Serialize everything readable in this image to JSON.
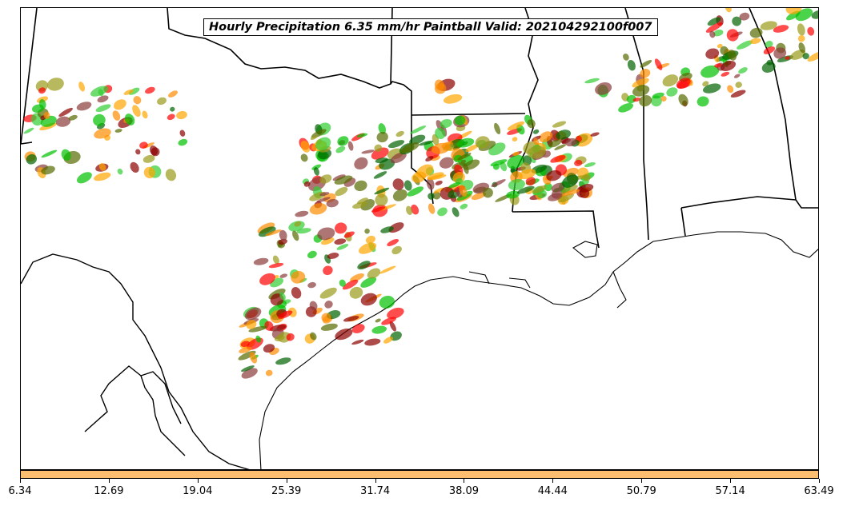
{
  "map": {
    "title": "Hourly Precipitation 6.35 mm/hr Paintball Valid: 202104292100f007"
  },
  "colorbar": {
    "color": "#fdbf6f",
    "ticks": [
      "6.34",
      "12.69",
      "19.04",
      "25.39",
      "31.74",
      "38.09",
      "44.44",
      "50.79",
      "57.14",
      "63.49"
    ]
  },
  "palette": {
    "red": "#ff0000",
    "dark_red": "#8b0000",
    "maroon": "#8b3a3a",
    "orange": "#ff8c00",
    "light_orange": "#ffa500",
    "green": "#00c000",
    "bright_green": "#32cd32",
    "dark_green": "#006400",
    "olive": "#9a9a1a",
    "dark_olive": "#556b00",
    "black": "#202020"
  }
}
